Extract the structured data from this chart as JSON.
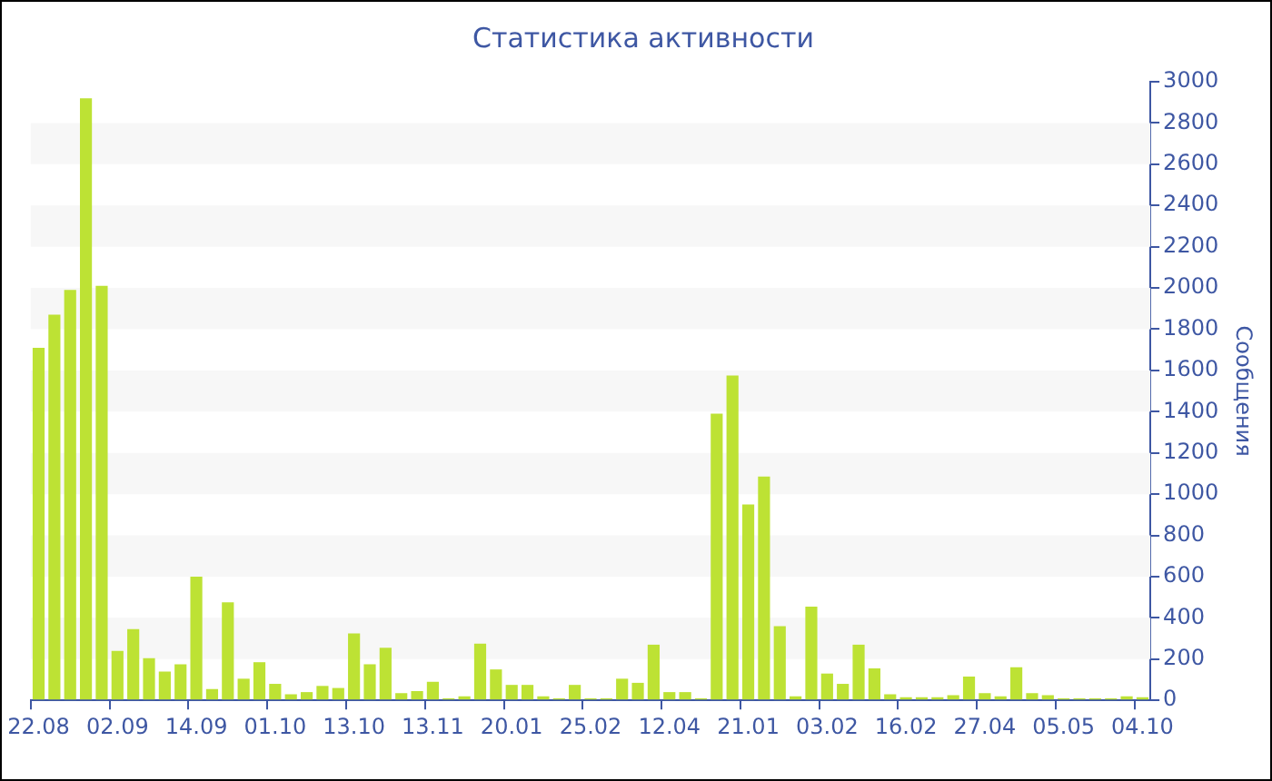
{
  "chart_data": {
    "type": "bar",
    "title": "Статистика активности",
    "ylabel": "Сообщения",
    "categories": [
      "22.08",
      null,
      null,
      null,
      null,
      "02.09",
      null,
      null,
      null,
      null,
      "14.09",
      null,
      null,
      null,
      null,
      "01.10",
      null,
      null,
      null,
      null,
      "13.10",
      null,
      null,
      null,
      null,
      "13.11",
      null,
      null,
      null,
      null,
      "20.01",
      null,
      null,
      null,
      null,
      "25.02",
      null,
      null,
      null,
      null,
      "12.04",
      null,
      null,
      null,
      null,
      "21.01",
      null,
      null,
      null,
      null,
      "03.02",
      null,
      null,
      null,
      null,
      "16.02",
      null,
      null,
      null,
      null,
      "27.04",
      null,
      null,
      null,
      null,
      "05.05",
      null,
      null,
      null,
      null,
      "04.10"
    ],
    "values": [
      1710,
      1870,
      1990,
      2920,
      2010,
      240,
      345,
      205,
      140,
      175,
      600,
      55,
      475,
      105,
      185,
      80,
      30,
      40,
      70,
      60,
      325,
      175,
      255,
      35,
      45,
      90,
      10,
      20,
      275,
      150,
      75,
      75,
      20,
      10,
      75,
      10,
      10,
      105,
      85,
      270,
      40,
      40,
      10,
      1390,
      1575,
      950,
      1085,
      360,
      20,
      455,
      130,
      80,
      270,
      155,
      30,
      15,
      15,
      15,
      25,
      115,
      35,
      20,
      160,
      35,
      25,
      10,
      10,
      10,
      10,
      20,
      15
    ],
    "color": "#bde234",
    "ylim": [
      0,
      3000
    ],
    "yticks": [
      0,
      200,
      400,
      600,
      800,
      1000,
      1200,
      1400,
      1600,
      1800,
      2000,
      2200,
      2400,
      2600,
      2800,
      3000
    ],
    "grid": false,
    "bands": [
      {
        "axis": "y",
        "from": 200,
        "to": 400,
        "color": "#f7f7f7"
      },
      {
        "axis": "y",
        "from": 600,
        "to": 800,
        "color": "#f7f7f7"
      },
      {
        "axis": "y",
        "from": 1000,
        "to": 1200,
        "color": "#f7f7f7"
      },
      {
        "axis": "y",
        "from": 1400,
        "to": 1600,
        "color": "#f7f7f7"
      },
      {
        "axis": "y",
        "from": 1800,
        "to": 2000,
        "color": "#f7f7f7"
      },
      {
        "axis": "y",
        "from": 2200,
        "to": 2400,
        "color": "#f7f7f7"
      },
      {
        "axis": "y",
        "from": 2600,
        "to": 2800,
        "color": "#f7f7f7"
      }
    ]
  }
}
